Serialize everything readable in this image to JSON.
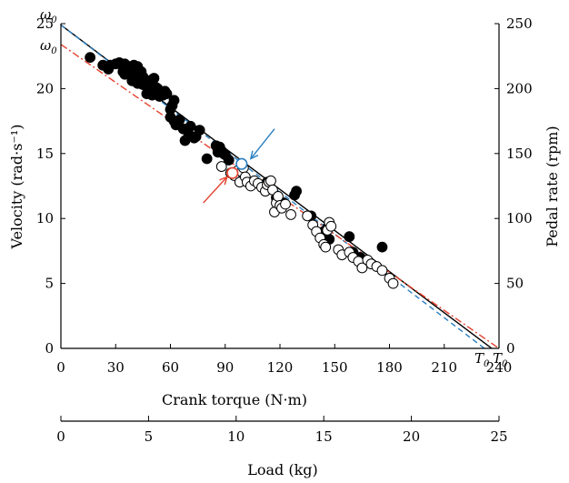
{
  "colors": {
    "blue": "#2a7fc1",
    "red": "#e5412d",
    "black": "#000000"
  },
  "chart_data": {
    "type": "scatter",
    "xlabel": "Crank torque (N·m)",
    "ylabel_left": "Velocity (rad·s⁻¹)",
    "ylabel_right": "Pedal rate (rpm)",
    "xlabel_secondary": "Load (kg)",
    "xlim": [
      0,
      240
    ],
    "ylim": [
      0,
      25
    ],
    "ylim_right": [
      0,
      250
    ],
    "xlim_secondary": [
      0,
      25
    ],
    "x_ticks": [
      0,
      30,
      60,
      90,
      120,
      150,
      180,
      210,
      240
    ],
    "x_ticks_secondary": [
      0,
      5,
      10,
      15,
      20,
      25
    ],
    "y_ticks": [
      0,
      5,
      10,
      15,
      20,
      25
    ],
    "y_ticks_right": [
      0,
      50,
      100,
      150,
      200,
      250
    ],
    "grid": false,
    "annotations": {
      "omega0_blue": "ω0",
      "omega0_red": "ω0",
      "t0_blue": "T0",
      "t0_red": "T0"
    },
    "lines": [
      {
        "style": "solid",
        "color": "#000000",
        "x": [
          0,
          236
        ],
        "y": [
          24.9,
          0
        ]
      },
      {
        "style": "dashed",
        "color": "#2a7fc1",
        "x": [
          0,
          232
        ],
        "y": [
          24.9,
          0
        ]
      },
      {
        "style": "dash-dot",
        "color": "#e5412d",
        "x": [
          0,
          240
        ],
        "y": [
          23.4,
          0
        ]
      }
    ],
    "markers": [
      {
        "color": "#2a7fc1",
        "x": 99,
        "y": 14.2
      },
      {
        "color": "#e5412d",
        "x": 94,
        "y": 13.5
      }
    ],
    "arrows": [
      {
        "color": "#2a7fc1",
        "from": [
          117,
          16.9
        ],
        "to": [
          104,
          14.6
        ]
      },
      {
        "color": "#e5412d",
        "from": [
          78,
          11.2
        ],
        "to": [
          91,
          13.2
        ]
      }
    ],
    "series": [
      {
        "marker": "filled",
        "x": [
          16,
          23,
          26,
          27,
          30,
          32,
          34,
          35,
          35,
          37,
          38,
          38,
          39,
          40,
          40,
          41,
          42,
          42,
          43,
          44,
          45,
          45,
          46,
          47,
          48,
          49,
          50,
          50,
          51,
          52,
          53,
          54,
          55,
          56,
          57,
          58,
          60,
          60,
          61,
          62,
          62,
          63,
          65,
          67,
          68,
          70,
          71,
          73,
          74,
          76,
          80,
          85,
          86,
          87,
          88,
          89,
          90,
          92,
          113,
          118,
          122,
          128,
          129,
          137,
          144,
          146,
          147,
          158,
          160,
          164,
          165,
          176
        ],
        "y": [
          22.4,
          21.8,
          21.5,
          21.8,
          21.9,
          22.0,
          21.3,
          21.1,
          21.9,
          21.4,
          21.7,
          21.3,
          20.6,
          21.8,
          21.2,
          20.8,
          20.4,
          21.7,
          20.4,
          21.3,
          20.9,
          20.3,
          20.6,
          19.6,
          20.2,
          20.6,
          20.7,
          19.5,
          20.8,
          20.1,
          20.0,
          19.4,
          19.7,
          19.5,
          19.8,
          19.6,
          17.8,
          18.4,
          18.7,
          19.1,
          17.5,
          17.2,
          17.6,
          16.9,
          16.0,
          16.5,
          17.1,
          16.2,
          16.3,
          16.8,
          14.6,
          15.6,
          15.1,
          15.5,
          15.2,
          15.0,
          14.9,
          14.5,
          12.8,
          11.6,
          11.2,
          11.8,
          12.1,
          10.2,
          9.0,
          9.3,
          8.4,
          8.6,
          7.4,
          7.0,
          6.3,
          7.8
        ]
      },
      {
        "marker": "open",
        "x": [
          88,
          93,
          95,
          97,
          98,
          99,
          100,
          101,
          102,
          104,
          106,
          108,
          110,
          112,
          113,
          114,
          115,
          116,
          117,
          118,
          119,
          120,
          121,
          123,
          126,
          135,
          138,
          140,
          142,
          144,
          145,
          146,
          147,
          148,
          152,
          154,
          158,
          160,
          163,
          165,
          168,
          170,
          173,
          176,
          180,
          182
        ],
        "y": [
          14.0,
          13.5,
          13.3,
          13.7,
          12.8,
          13.6,
          13.9,
          13.2,
          12.8,
          12.5,
          12.9,
          12.7,
          12.4,
          12.1,
          12.6,
          12.8,
          12.9,
          12.2,
          10.5,
          11.2,
          11.7,
          11.0,
          10.8,
          11.1,
          10.3,
          10.2,
          9.5,
          9.0,
          8.5,
          8.0,
          7.8,
          9.1,
          9.7,
          9.4,
          7.6,
          7.2,
          7.4,
          7.0,
          6.7,
          6.2,
          6.8,
          6.5,
          6.3,
          6.0,
          5.4,
          5.0
        ]
      }
    ]
  }
}
